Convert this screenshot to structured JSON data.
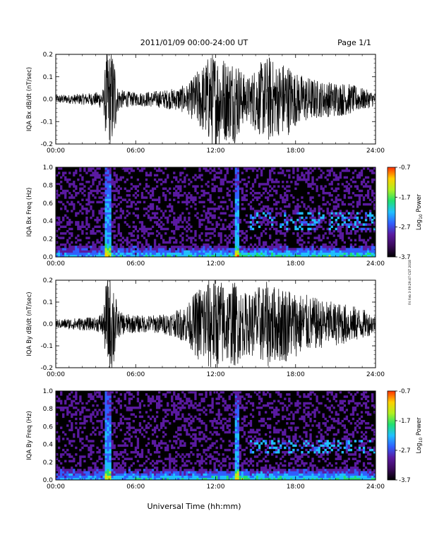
{
  "header": {
    "title": "2011/01/09  00:00-24:00 UT",
    "page": "Page 1/1"
  },
  "x_axis_label": "Universal Time (hh:mm)",
  "timestamp_stamp": "Fri Feb 3 09:29:47 CST 2018",
  "colors": {
    "waveform": "#000000",
    "spectrogram_background": "#000000",
    "colormap": [
      "#000000",
      "#3a0a5a",
      "#5a1aa0",
      "#3060ff",
      "#20c0ff",
      "#20e070",
      "#b0f020",
      "#ffd000",
      "#ff3000"
    ]
  },
  "chart_data": [
    {
      "type": "line",
      "name": "panel-bx-waveform",
      "ylabel": "IQA Bx dB/dt (nT/sec)",
      "x_ticks": [
        "00:00",
        "06:00",
        "12:00",
        "18:00",
        "24:00"
      ],
      "xlim": [
        0,
        24
      ],
      "ylim": [
        -0.2,
        0.2
      ],
      "y_ticks": [
        "-0.2",
        "-0.1",
        "0.0",
        "0.1",
        "0.2"
      ],
      "envelope": {
        "hours": [
          0,
          1,
          2,
          3,
          3.6,
          3.8,
          4.4,
          4.6,
          5,
          6,
          7,
          8,
          9,
          10,
          10.5,
          11,
          11.5,
          12,
          12.5,
          13,
          13.5,
          14,
          14.5,
          15,
          15.5,
          16,
          16.5,
          17,
          17.5,
          18,
          19,
          20,
          21,
          22,
          23,
          24
        ],
        "amplitude": [
          0.02,
          0.02,
          0.025,
          0.03,
          0.05,
          0.22,
          0.22,
          0.06,
          0.04,
          0.03,
          0.035,
          0.04,
          0.05,
          0.07,
          0.12,
          0.15,
          0.2,
          0.22,
          0.2,
          0.18,
          0.2,
          0.12,
          0.1,
          0.15,
          0.17,
          0.2,
          0.16,
          0.17,
          0.16,
          0.12,
          0.1,
          0.08,
          0.08,
          0.07,
          0.05,
          0.03
        ]
      }
    },
    {
      "type": "heatmap",
      "name": "panel-bx-spectrogram",
      "ylabel": "IQA Bx Freq (Hz)",
      "x_ticks": [
        "00:00",
        "06:00",
        "12:00",
        "18:00",
        "24:00"
      ],
      "xlim": [
        0,
        24
      ],
      "ylim": [
        0.0,
        1.0
      ],
      "y_ticks": [
        "0.0",
        "0.2",
        "0.4",
        "0.6",
        "0.8",
        "1.0"
      ],
      "colorbar": {
        "label": "Log10 Power",
        "label_main": "Log",
        "label_sub": "10",
        "label_tail": " Power",
        "ticks": [
          "-0.7",
          "-1.7",
          "-2.7",
          "-3.7"
        ],
        "range": [
          -3.7,
          -0.7
        ]
      },
      "features": {
        "spike_hours": [
          3.9,
          13.6
        ],
        "band_hours": [
          14.5,
          24
        ],
        "band_freqs": [
          0.3,
          0.5
        ]
      }
    },
    {
      "type": "line",
      "name": "panel-by-waveform",
      "ylabel": "IQA By dB/dt (nT/sec)",
      "x_ticks": [
        "00:00",
        "06:00",
        "12:00",
        "18:00",
        "24:00"
      ],
      "xlim": [
        0,
        24
      ],
      "ylim": [
        -0.2,
        0.2
      ],
      "y_ticks": [
        "-0.2",
        "-0.1",
        "0.0",
        "0.1",
        "0.2"
      ],
      "envelope": {
        "hours": [
          0,
          1,
          2,
          3,
          3.6,
          3.8,
          4.4,
          4.6,
          5,
          6,
          7,
          8,
          9,
          10,
          10.5,
          11,
          11.5,
          12,
          12.5,
          13,
          13.5,
          14,
          14.5,
          15,
          15.5,
          16,
          16.5,
          17,
          17.5,
          18,
          19,
          20,
          21,
          22,
          23,
          24
        ],
        "amplitude": [
          0.02,
          0.025,
          0.03,
          0.03,
          0.06,
          0.22,
          0.22,
          0.07,
          0.05,
          0.04,
          0.04,
          0.045,
          0.06,
          0.1,
          0.15,
          0.2,
          0.22,
          0.21,
          0.2,
          0.18,
          0.2,
          0.15,
          0.14,
          0.17,
          0.18,
          0.2,
          0.17,
          0.18,
          0.17,
          0.15,
          0.13,
          0.11,
          0.1,
          0.09,
          0.07,
          0.04
        ]
      }
    },
    {
      "type": "heatmap",
      "name": "panel-by-spectrogram",
      "ylabel": "IQA By Freq (Hz)",
      "x_ticks": [
        "00:00",
        "06:00",
        "12:00",
        "18:00",
        "24:00"
      ],
      "xlim": [
        0,
        24
      ],
      "ylim": [
        0.0,
        1.0
      ],
      "y_ticks": [
        "0.0",
        "0.2",
        "0.4",
        "0.6",
        "0.8",
        "1.0"
      ],
      "colorbar": {
        "label": "Log10 Power",
        "label_main": "Log",
        "label_sub": "10",
        "label_tail": " Power",
        "ticks": [
          "-0.7",
          "-1.7",
          "-2.7",
          "-3.7"
        ],
        "range": [
          -3.7,
          -0.7
        ]
      },
      "features": {
        "spike_hours": [
          3.9,
          13.6
        ],
        "band_hours": [
          14.5,
          24
        ],
        "band_freqs": [
          0.3,
          0.45
        ]
      }
    }
  ]
}
